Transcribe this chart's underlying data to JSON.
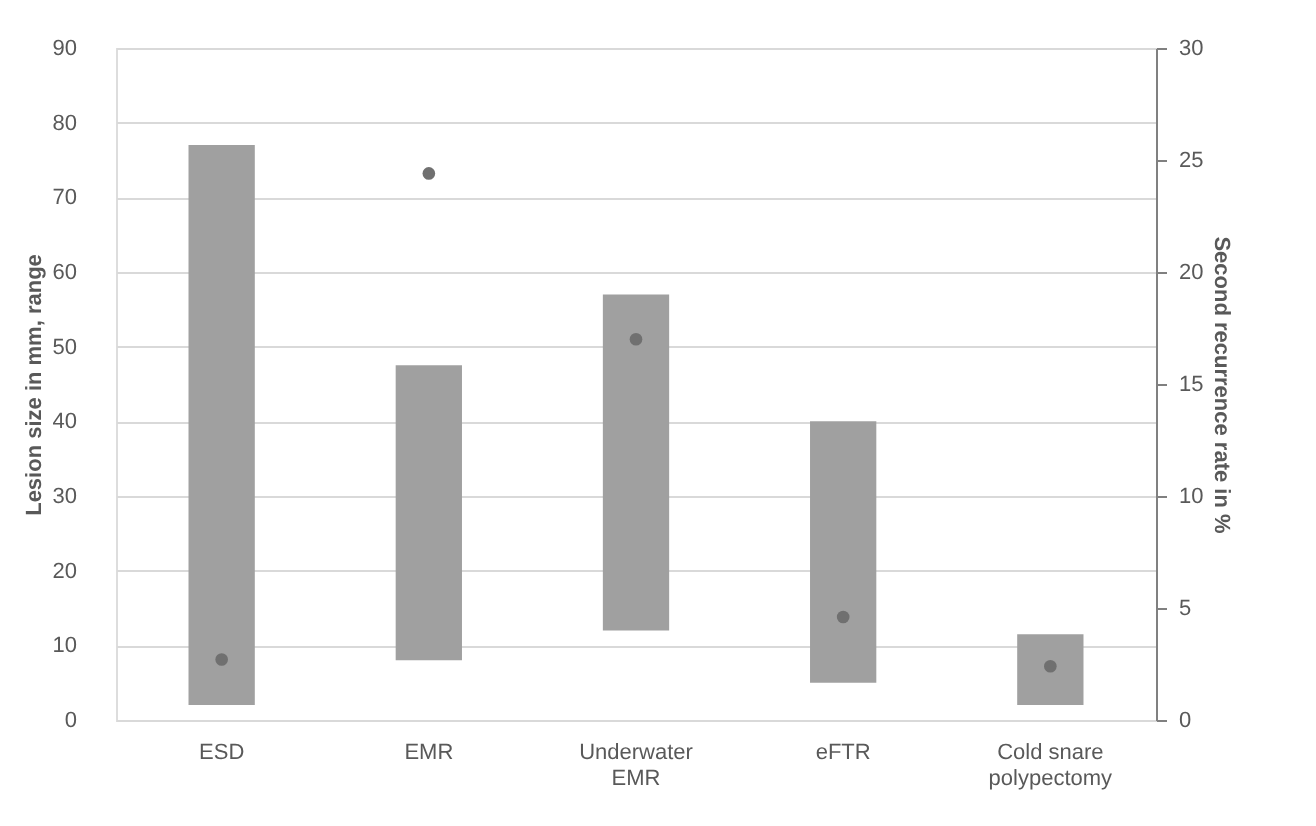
{
  "chart_data": {
    "type": "bar",
    "categories": [
      "ESD",
      "EMR",
      "Underwater EMR",
      "eFTR",
      "Cold snare polypectomy"
    ],
    "series": [
      {
        "color": "#a0a0a0",
        "values": [
          75,
          39.5,
          45,
          35,
          9.5
        ],
        "base": [
          2,
          8,
          12,
          5,
          2
        ]
      },
      {
        "type": "scatter",
        "axis": "y2",
        "color": "#707070",
        "values": [
          2.7,
          24.4,
          17,
          4.6,
          2.4
        ]
      }
    ],
    "ylabel": "Lesion size in mm, range",
    "y2label": "Second recurrence rate in %",
    "ylim": [
      0,
      90
    ],
    "yticks": [
      0,
      10,
      20,
      30,
      40,
      50,
      60,
      70,
      80,
      90
    ],
    "y2lim": [
      0,
      30
    ],
    "y2ticks": [
      0,
      5,
      10,
      15,
      20,
      25,
      30
    ],
    "grid": "y",
    "marker": "circle"
  }
}
